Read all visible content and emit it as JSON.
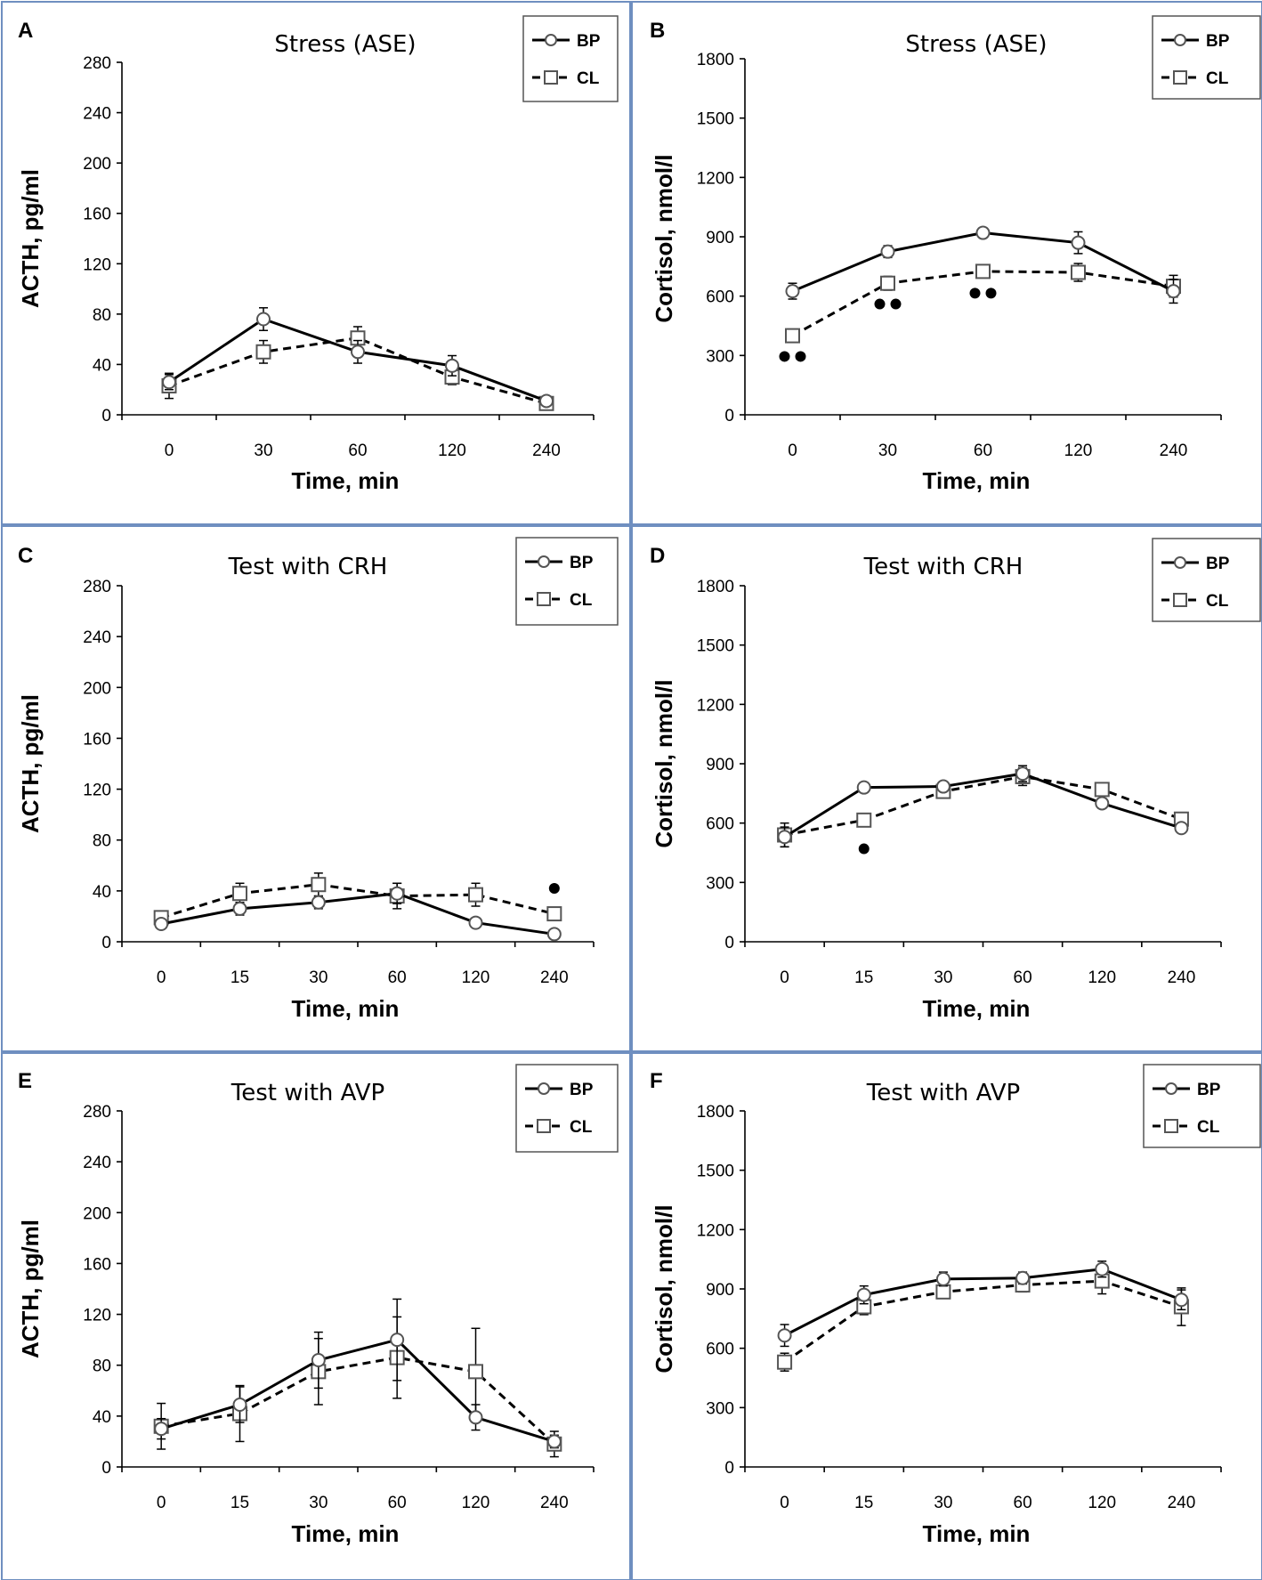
{
  "legend": {
    "bp_label": "BP",
    "cl_label": "CL"
  },
  "colors": {
    "line": "#000000",
    "marker_fill": "#ffffff",
    "border": "#6f8fc0"
  },
  "chart_data": [
    {
      "panel": "A",
      "type": "line",
      "title": "Stress (ASE)",
      "xlabel": "Time, min",
      "ylabel": "ACTH, pg/ml",
      "categories": [
        "0",
        "30",
        "60",
        "120",
        "240"
      ],
      "yticks": [
        0,
        40,
        80,
        120,
        160,
        200,
        240,
        280
      ],
      "ylim": [
        0,
        280
      ],
      "series": [
        {
          "name": "BP",
          "style": "solid",
          "marker": "circle",
          "values": [
            26,
            76,
            50,
            39,
            11
          ],
          "err": [
            6,
            9,
            9,
            8,
            3
          ]
        },
        {
          "name": "CL",
          "style": "dashed",
          "marker": "square",
          "values": [
            23,
            50,
            61,
            30,
            9
          ],
          "err": [
            10,
            9,
            9,
            6,
            3
          ]
        }
      ],
      "annotations": []
    },
    {
      "panel": "B",
      "type": "line",
      "title": "Stress (ASE)",
      "xlabel": "Time, min",
      "ylabel": "Cortisol, nmol/l",
      "categories": [
        "0",
        "30",
        "60",
        "120",
        "240"
      ],
      "yticks": [
        0,
        300,
        600,
        900,
        1200,
        1500,
        1800
      ],
      "ylim": [
        0,
        1800
      ],
      "series": [
        {
          "name": "BP",
          "style": "solid",
          "marker": "circle",
          "values": [
            625,
            825,
            920,
            870,
            625
          ],
          "err": [
            40,
            30,
            25,
            55,
            60
          ]
        },
        {
          "name": "CL",
          "style": "dashed",
          "marker": "square",
          "values": [
            400,
            665,
            725,
            720,
            650
          ],
          "err": [
            30,
            35,
            30,
            45,
            55
          ]
        }
      ],
      "annotations": [
        {
          "label": "••",
          "category": "0",
          "y": 295
        },
        {
          "label": "••",
          "category": "30",
          "y": 560
        },
        {
          "label": "••",
          "category": "60",
          "y": 615
        }
      ]
    },
    {
      "panel": "C",
      "type": "line",
      "title": "Test with CRH",
      "xlabel": "Time, min",
      "ylabel": "ACTH, pg/ml",
      "categories": [
        "0",
        "15",
        "30",
        "60",
        "120",
        "240"
      ],
      "yticks": [
        0,
        40,
        80,
        120,
        160,
        200,
        240,
        280
      ],
      "ylim": [
        0,
        280
      ],
      "series": [
        {
          "name": "BP",
          "style": "solid",
          "marker": "circle",
          "values": [
            14,
            26,
            31,
            38,
            15,
            6
          ],
          "err": [
            3,
            5,
            5,
            8,
            3,
            2
          ]
        },
        {
          "name": "CL",
          "style": "dashed",
          "marker": "square",
          "values": [
            19,
            38,
            45,
            36,
            37,
            22
          ],
          "err": [
            4,
            8,
            9,
            10,
            9,
            5
          ]
        }
      ],
      "annotations": [
        {
          "label": "•",
          "category": "240",
          "y": 42
        }
      ]
    },
    {
      "panel": "D",
      "type": "line",
      "title": "Test with CRH",
      "xlabel": "Time, min",
      "ylabel": "Cortisol, nmol/l",
      "categories": [
        "0",
        "15",
        "30",
        "60",
        "120",
        "240"
      ],
      "yticks": [
        0,
        300,
        600,
        900,
        1200,
        1500,
        1800
      ],
      "ylim": [
        0,
        1800
      ],
      "series": [
        {
          "name": "BP",
          "style": "solid",
          "marker": "circle",
          "values": [
            530,
            780,
            785,
            850,
            700,
            575
          ],
          "err": [
            50,
            25,
            20,
            40,
            25,
            20
          ]
        },
        {
          "name": "CL",
          "style": "dashed",
          "marker": "square",
          "values": [
            540,
            615,
            760,
            835,
            770,
            620
          ],
          "err": [
            60,
            30,
            30,
            45,
            30,
            25
          ]
        }
      ],
      "annotations": [
        {
          "label": "•",
          "category": "15",
          "y": 470
        }
      ]
    },
    {
      "panel": "E",
      "type": "line",
      "title": "Test with AVP",
      "xlabel": "Time, min",
      "ylabel": "ACTH, pg/ml",
      "categories": [
        "0",
        "15",
        "30",
        "60",
        "120",
        "240"
      ],
      "yticks": [
        0,
        40,
        80,
        120,
        160,
        200,
        240,
        280
      ],
      "ylim": [
        0,
        280
      ],
      "series": [
        {
          "name": "BP",
          "style": "solid",
          "marker": "circle",
          "values": [
            30,
            49,
            84,
            100,
            39,
            20
          ],
          "err": [
            8,
            14,
            22,
            32,
            10,
            5
          ]
        },
        {
          "name": "CL",
          "style": "dashed",
          "marker": "square",
          "values": [
            32,
            42,
            75,
            86,
            75,
            18
          ],
          "err": [
            18,
            22,
            26,
            32,
            34,
            10
          ]
        }
      ],
      "annotations": []
    },
    {
      "panel": "F",
      "type": "line",
      "title": "Test with AVP",
      "xlabel": "Time, min",
      "ylabel": "Cortisol, nmol/l",
      "categories": [
        "0",
        "15",
        "30",
        "60",
        "120",
        "240"
      ],
      "yticks": [
        0,
        300,
        600,
        900,
        1200,
        1500,
        1800
      ],
      "ylim": [
        0,
        1800
      ],
      "series": [
        {
          "name": "BP",
          "style": "solid",
          "marker": "circle",
          "values": [
            665,
            870,
            950,
            955,
            1000,
            845
          ],
          "err": [
            55,
            45,
            35,
            30,
            40,
            50
          ]
        },
        {
          "name": "CL",
          "style": "dashed",
          "marker": "square",
          "values": [
            530,
            810,
            885,
            920,
            940,
            810
          ],
          "err": [
            45,
            40,
            30,
            35,
            65,
            95
          ]
        }
      ],
      "annotations": []
    }
  ]
}
